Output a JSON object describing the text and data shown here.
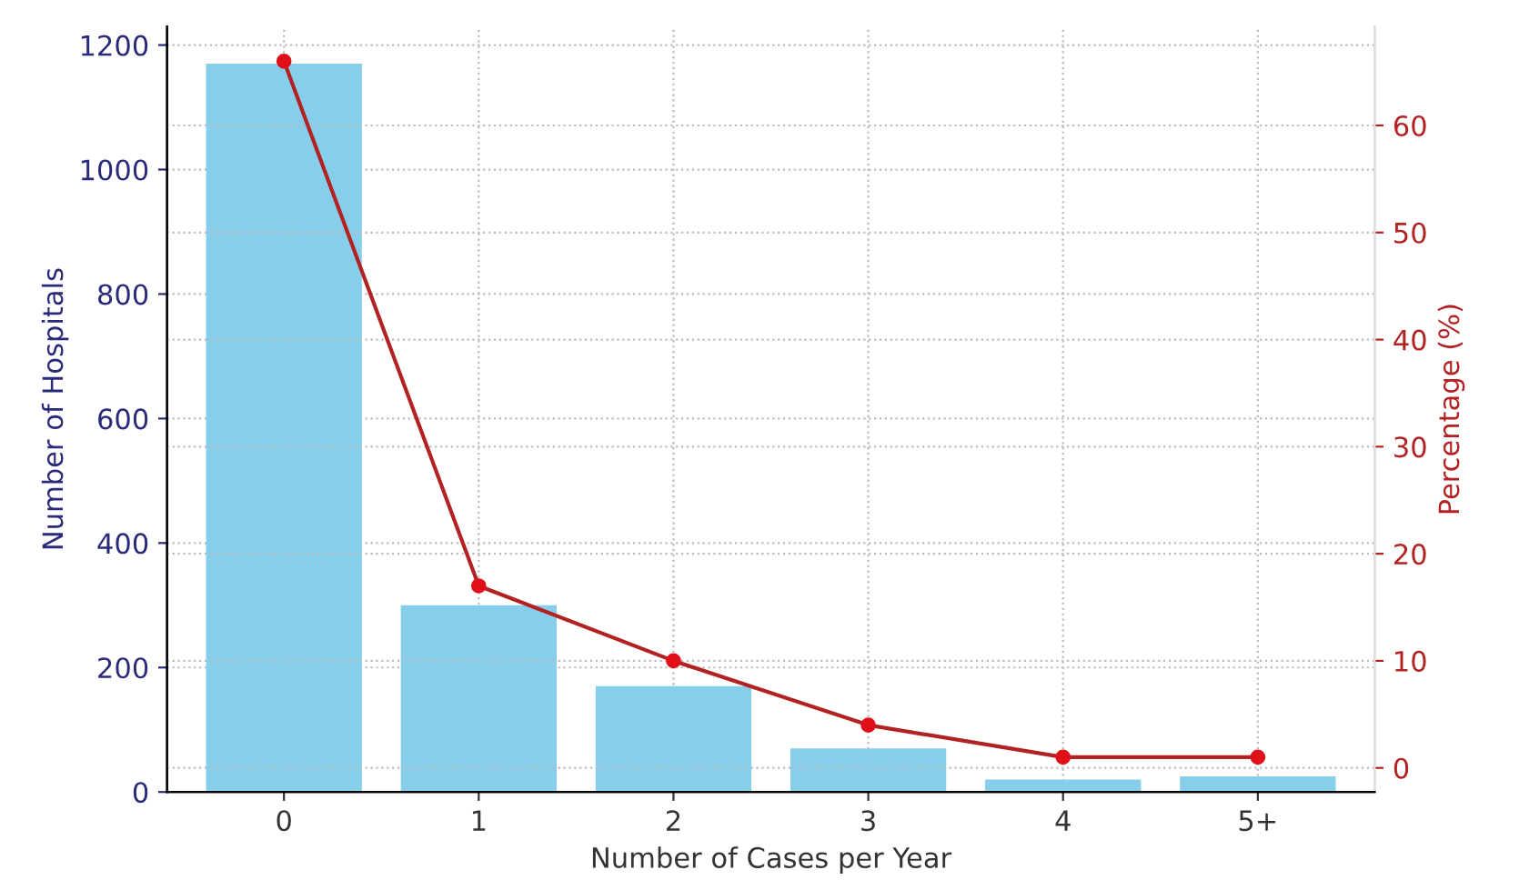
{
  "chart_data": {
    "type": "bar",
    "categories": [
      "0",
      "1",
      "2",
      "3",
      "4",
      "5+"
    ],
    "xlabel": "Number of Cases per Year",
    "ylabel": "Number of Hospitals",
    "y2label": "Percentage (%)",
    "series": [
      {
        "name": null,
        "color": "#87ceeb",
        "values": [
          1170,
          300,
          170,
          70,
          20,
          25
        ]
      },
      {
        "name": null,
        "type": "line",
        "axis": "y2",
        "color": "#b22222",
        "marker": "circle",
        "values": [
          66,
          17,
          10,
          4,
          1,
          1
        ]
      }
    ],
    "ylim": [
      0,
      1230
    ],
    "yticks": [
      0,
      200,
      400,
      600,
      800,
      1000,
      1200
    ],
    "y2lim": [
      -2.25,
      69.25
    ],
    "y2ticks": [
      0,
      10,
      20,
      30,
      40,
      50,
      60
    ],
    "grid": true
  }
}
